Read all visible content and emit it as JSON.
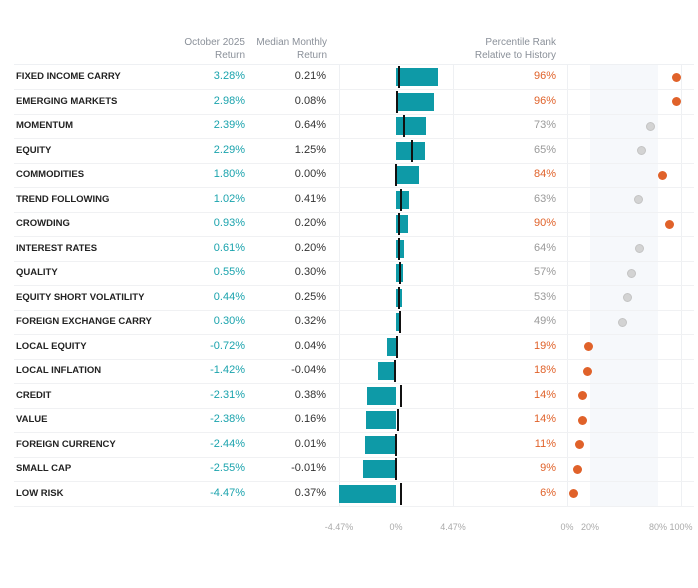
{
  "chart_data": {
    "type": "table",
    "headers": {
      "oct": [
        "October 2025",
        "Return"
      ],
      "median": [
        "Median Monthly",
        "Return"
      ],
      "pct": [
        "Percentile Rank",
        "Relative to History"
      ]
    },
    "bar_axis": {
      "range": [
        -4.47,
        4.47
      ],
      "ticks": [
        "-4.47%",
        "0%",
        "4.47%"
      ]
    },
    "pct_axis": {
      "range": [
        0,
        100
      ],
      "ticks": [
        "0%",
        "20%",
        "80%",
        "100%"
      ],
      "shaded_band": [
        20,
        80
      ]
    },
    "colors": {
      "bar": "#0e9aa7",
      "positive_text": "#1aa3ad",
      "highlight": "#e0622a",
      "normal_dot": "#d3d3d3",
      "median_line": "#111111"
    },
    "rows": [
      {
        "name": "FIXED INCOME CARRY",
        "oct": 3.28,
        "oct_label": "3.28%",
        "median": 0.21,
        "median_label": "0.21%",
        "pct": 96,
        "pct_label": "96%",
        "highlight": true
      },
      {
        "name": "EMERGING MARKETS",
        "oct": 2.98,
        "oct_label": "2.98%",
        "median": 0.08,
        "median_label": "0.08%",
        "pct": 96,
        "pct_label": "96%",
        "highlight": true
      },
      {
        "name": "MOMENTUM",
        "oct": 2.39,
        "oct_label": "2.39%",
        "median": 0.64,
        "median_label": "0.64%",
        "pct": 73,
        "pct_label": "73%",
        "highlight": false
      },
      {
        "name": "EQUITY",
        "oct": 2.29,
        "oct_label": "2.29%",
        "median": 1.25,
        "median_label": "1.25%",
        "pct": 65,
        "pct_label": "65%",
        "highlight": false
      },
      {
        "name": "COMMODITIES",
        "oct": 1.8,
        "oct_label": "1.80%",
        "median": 0.0,
        "median_label": "0.00%",
        "pct": 84,
        "pct_label": "84%",
        "highlight": true
      },
      {
        "name": "TREND FOLLOWING",
        "oct": 1.02,
        "oct_label": "1.02%",
        "median": 0.41,
        "median_label": "0.41%",
        "pct": 63,
        "pct_label": "63%",
        "highlight": false
      },
      {
        "name": "CROWDING",
        "oct": 0.93,
        "oct_label": "0.93%",
        "median": 0.2,
        "median_label": "0.20%",
        "pct": 90,
        "pct_label": "90%",
        "highlight": true
      },
      {
        "name": "INTEREST RATES",
        "oct": 0.61,
        "oct_label": "0.61%",
        "median": 0.2,
        "median_label": "0.20%",
        "pct": 64,
        "pct_label": "64%",
        "highlight": false
      },
      {
        "name": "QUALITY",
        "oct": 0.55,
        "oct_label": "0.55%",
        "median": 0.3,
        "median_label": "0.30%",
        "pct": 57,
        "pct_label": "57%",
        "highlight": false
      },
      {
        "name": "EQUITY SHORT VOLATILITY",
        "oct": 0.44,
        "oct_label": "0.44%",
        "median": 0.25,
        "median_label": "0.25%",
        "pct": 53,
        "pct_label": "53%",
        "highlight": false
      },
      {
        "name": "FOREIGN EXCHANGE CARRY",
        "oct": 0.3,
        "oct_label": "0.30%",
        "median": 0.32,
        "median_label": "0.32%",
        "pct": 49,
        "pct_label": "49%",
        "highlight": false
      },
      {
        "name": "LOCAL EQUITY",
        "oct": -0.72,
        "oct_label": "-0.72%",
        "median": 0.04,
        "median_label": "0.04%",
        "pct": 19,
        "pct_label": "19%",
        "highlight": true
      },
      {
        "name": "LOCAL INFLATION",
        "oct": -1.42,
        "oct_label": "-1.42%",
        "median": -0.04,
        "median_label": "-0.04%",
        "pct": 18,
        "pct_label": "18%",
        "highlight": true
      },
      {
        "name": "CREDIT",
        "oct": -2.31,
        "oct_label": "-2.31%",
        "median": 0.38,
        "median_label": "0.38%",
        "pct": 14,
        "pct_label": "14%",
        "highlight": true
      },
      {
        "name": "VALUE",
        "oct": -2.38,
        "oct_label": "-2.38%",
        "median": 0.16,
        "median_label": "0.16%",
        "pct": 14,
        "pct_label": "14%",
        "highlight": true
      },
      {
        "name": "FOREIGN CURRENCY",
        "oct": -2.44,
        "oct_label": "-2.44%",
        "median": 0.01,
        "median_label": "0.01%",
        "pct": 11,
        "pct_label": "11%",
        "highlight": true
      },
      {
        "name": "SMALL CAP",
        "oct": -2.55,
        "oct_label": "-2.55%",
        "median": -0.01,
        "median_label": "-0.01%",
        "pct": 9,
        "pct_label": "9%",
        "highlight": true
      },
      {
        "name": "LOW RISK",
        "oct": -4.47,
        "oct_label": "-4.47%",
        "median": 0.37,
        "median_label": "0.37%",
        "pct": 6,
        "pct_label": "6%",
        "highlight": true
      }
    ]
  }
}
